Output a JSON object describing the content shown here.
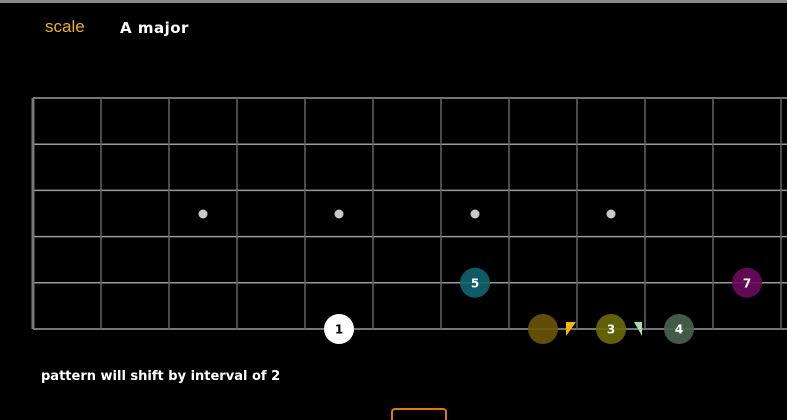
{
  "header": {
    "scale_label": "scale",
    "scale_name": "A major"
  },
  "fretboard": {
    "strings": 6,
    "frets_visible": 11,
    "inlay_frets": [
      3,
      5,
      7,
      9
    ],
    "notes": [
      {
        "label": "1",
        "string": 6,
        "fret": 5,
        "color": "#ffffff",
        "text_color": "#000000"
      },
      {
        "label": "5",
        "string": 5,
        "fret": 7,
        "color": "#0f6570",
        "text_color": "#ffffff"
      },
      {
        "label": "7",
        "string": 5,
        "fret": 11,
        "color": "#6a0a5e",
        "text_color": "#ffffff"
      },
      {
        "label": "",
        "string": 6,
        "fret": 8,
        "color": "#6b5508",
        "text_color": "#ffffff"
      },
      {
        "label": "3",
        "string": 6,
        "fret": 9,
        "color": "#6a6a08",
        "text_color": "#ffffff"
      },
      {
        "label": "4",
        "string": 6,
        "fret": 10,
        "color": "#4a6450",
        "text_color": "#ffffff"
      }
    ],
    "markers": [
      {
        "name": "yellow-flag-icon",
        "color": "#f5b800",
        "string": 6,
        "after_fret": 8
      },
      {
        "name": "green-flag-icon",
        "color": "#a8dcb0",
        "string": 6,
        "after_fret": 9
      }
    ]
  },
  "footer": {
    "shift_text": "pattern will shift by interval of 2"
  }
}
